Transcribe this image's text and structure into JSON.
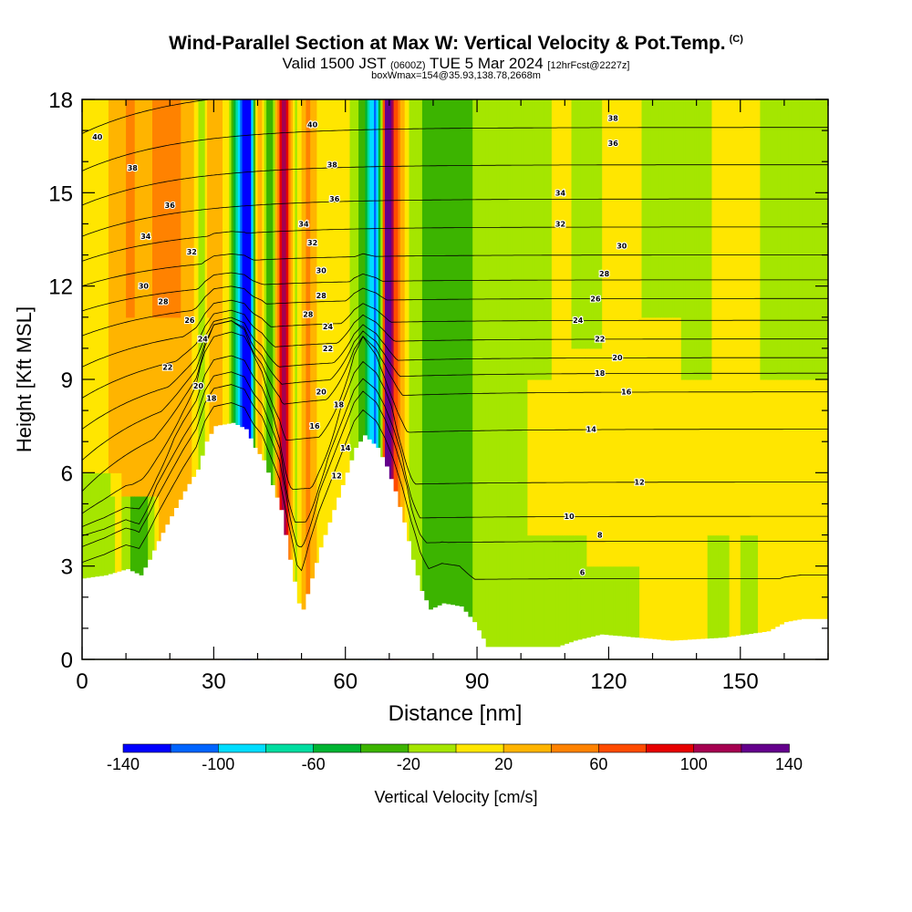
{
  "header": {
    "title_main": "Wind-Parallel Section at Max W: Vertical Velocity & Pot.Temp.",
    "title_tag": "(C)",
    "line2_a": "Valid 1500 JST",
    "line2_b": "(0600Z)",
    "line2_c": "TUE 5 Mar 2024",
    "line2_d": "[12hrFcst@2227z]",
    "line3": "boxWmax=154@35.93,138.78,2668m"
  },
  "colors": {
    "palette": [
      "#0000ff",
      "#0064ff",
      "#00ddff",
      "#00dda0",
      "#00b432",
      "#3cb400",
      "#a5e600",
      "#ffe600",
      "#ffb400",
      "#ff8200",
      "#ff4b00",
      "#e60000",
      "#a50050",
      "#64008c"
    ],
    "terrain": "#ffffff",
    "contour": "#000000"
  },
  "chart_data": {
    "type": "heatmap",
    "xlabel": "Distance [nm]",
    "ylabel": "Height [Kft MSL]",
    "xlim": [
      0,
      170
    ],
    "ylim": [
      0,
      18
    ],
    "xticks": [
      "0",
      "30",
      "60",
      "90",
      "120",
      "150"
    ],
    "yticks": [
      "0",
      "3",
      "6",
      "9",
      "12",
      "15",
      "18"
    ],
    "xtick_values": [
      0,
      30,
      60,
      90,
      120,
      150
    ],
    "ytick_values": [
      0,
      3,
      6,
      9,
      12,
      15,
      18
    ],
    "colorbar": {
      "label": "Vertical Velocity [cm/s]",
      "bounds": [
        -140,
        -120,
        -100,
        -80,
        -60,
        -40,
        -20,
        0,
        20,
        40,
        60,
        80,
        100,
        120,
        140
      ],
      "tick_labels": [
        "-140",
        "-100",
        "-60",
        "-20",
        "20",
        "60",
        "100",
        "140"
      ],
      "tick_values": [
        -140,
        -100,
        -60,
        -20,
        20,
        60,
        100,
        140
      ]
    },
    "background_w": 10,
    "terrain_profile": [
      [
        0,
        2.6
      ],
      [
        5,
        2.7
      ],
      [
        10,
        2.9
      ],
      [
        13,
        2.7
      ],
      [
        15,
        3.2
      ],
      [
        17,
        3.8
      ],
      [
        20,
        4.6
      ],
      [
        23,
        5.4
      ],
      [
        26,
        6.1
      ],
      [
        28,
        7.0
      ],
      [
        30,
        7.5
      ],
      [
        34,
        7.6
      ],
      [
        37,
        7.4
      ],
      [
        39,
        6.8
      ],
      [
        41,
        6.4
      ],
      [
        43,
        5.6
      ],
      [
        45,
        4.8
      ],
      [
        47,
        3.2
      ],
      [
        49,
        1.8
      ],
      [
        50,
        1.6
      ],
      [
        52,
        2.6
      ],
      [
        54,
        3.6
      ],
      [
        56,
        4.4
      ],
      [
        58,
        5.2
      ],
      [
        60,
        6.0
      ],
      [
        62,
        6.8
      ],
      [
        64,
        7.2
      ],
      [
        67,
        6.8
      ],
      [
        69,
        6.2
      ],
      [
        71,
        5.4
      ],
      [
        73,
        4.4
      ],
      [
        75,
        3.2
      ],
      [
        77,
        2.2
      ],
      [
        79,
        1.6
      ],
      [
        82,
        1.8
      ],
      [
        86,
        1.7
      ],
      [
        89,
        1.2
      ],
      [
        92,
        0.4
      ],
      [
        100,
        0.4
      ],
      [
        108,
        0.4
      ],
      [
        112,
        0.6
      ],
      [
        118,
        0.8
      ],
      [
        126,
        0.7
      ],
      [
        134,
        0.6
      ],
      [
        146,
        0.7
      ],
      [
        156,
        0.9
      ],
      [
        160,
        1.2
      ],
      [
        164,
        1.3
      ],
      [
        170,
        1.3
      ]
    ],
    "w_features": [
      {
        "x": 38.0,
        "w": -150,
        "sx": 1.2
      },
      {
        "x": 36.0,
        "w": -70,
        "sx": 1.4
      },
      {
        "x": 40.0,
        "w": 60,
        "sx": 1.0
      },
      {
        "x": 43.0,
        "w": -50,
        "sx": 1.4
      },
      {
        "x": 46.0,
        "w": 110,
        "sx": 1.3
      },
      {
        "x": 48.5,
        "w": -40,
        "sx": 1.5
      },
      {
        "x": 51.0,
        "w": 40,
        "sx": 1.6
      },
      {
        "x": 67.0,
        "w": -105,
        "sx": 1.5
      },
      {
        "x": 69.5,
        "w": 140,
        "sx": 1.0
      },
      {
        "x": 71.5,
        "w": 45,
        "sx": 1.4
      },
      {
        "x": 64.0,
        "w": -30,
        "sx": 2.0
      },
      {
        "x": 27.5,
        "w": -45,
        "sx": 1.2
      },
      {
        "x": 29.5,
        "w": 35,
        "sx": 1.5
      },
      {
        "x": 25.5,
        "w": 15,
        "sx": 2.0
      },
      {
        "x": 13.0,
        "w": -60,
        "sx": 2.6,
        "ytop": 5.2
      },
      {
        "x": 10.5,
        "w": 30,
        "sx": 3.0
      },
      {
        "x": 19.0,
        "w": 25,
        "sx": 2.2
      },
      {
        "x": 5.0,
        "w": -25,
        "sx": 5.0,
        "ytop": 6.0
      },
      {
        "x": 82.0,
        "w": -30,
        "sx": 4.0
      },
      {
        "x": 88.0,
        "w": -25,
        "sx": 3.5
      },
      {
        "x": 98.0,
        "w": -20,
        "sx": 3.0
      },
      {
        "x": 108.0,
        "w": -25,
        "sx": 5.0,
        "ytop": 4.0
      },
      {
        "x": 122.0,
        "w": -22,
        "sx": 4.0,
        "ytop": 3.0
      },
      {
        "x": 104.0,
        "w": -18,
        "sx": 2.5,
        "ybot": 9.0
      },
      {
        "x": 115.0,
        "w": -18,
        "sx": 3.0,
        "ybot": 10.0
      },
      {
        "x": 140.0,
        "w": -15,
        "sx": 4.0,
        "ybot": 9.0
      },
      {
        "x": 145.0,
        "w": -20,
        "sx": 2.0,
        "ytop": 4.0
      },
      {
        "x": 152.0,
        "w": -15,
        "sx": 2.0,
        "ytop": 4.0
      },
      {
        "x": 160.0,
        "w": -25,
        "sx": 4.0,
        "ybot": 9.0
      },
      {
        "x": 167.0,
        "w": -20,
        "sx": 2.5,
        "ybot": 9.0
      },
      {
        "x": 130.0,
        "w": -15,
        "sx": 3.0,
        "ybot": 11.0
      },
      {
        "x": 20.0,
        "w": 22,
        "sx": 4.0,
        "ybot": 11.0
      },
      {
        "x": 77.0,
        "w": -15,
        "sx": 3.0
      }
    ],
    "theta_levels": [
      6,
      8,
      10,
      12,
      14,
      16,
      18,
      20,
      22,
      24,
      26,
      28,
      30,
      32,
      34,
      36,
      38,
      40
    ],
    "theta_profile_far": [
      [
        6,
        2.6
      ],
      [
        8,
        3.8
      ],
      [
        10,
        4.6
      ],
      [
        12,
        5.7
      ],
      [
        14,
        7.4
      ],
      [
        16,
        8.6
      ],
      [
        18,
        9.2
      ],
      [
        20,
        9.7
      ],
      [
        22,
        10.3
      ],
      [
        24,
        10.9
      ],
      [
        26,
        11.6
      ],
      [
        28,
        12.2
      ],
      [
        30,
        13.0
      ],
      [
        32,
        13.9
      ],
      [
        34,
        14.8
      ],
      [
        36,
        15.9
      ],
      [
        38,
        17.1
      ],
      [
        40,
        18.4
      ]
    ],
    "theta_profile_west": [
      [
        6,
        1.0
      ],
      [
        8,
        2.0
      ],
      [
        10,
        2.8
      ],
      [
        12,
        3.6
      ],
      [
        14,
        4.4
      ],
      [
        16,
        5.4
      ],
      [
        18,
        6.4
      ],
      [
        20,
        7.4
      ],
      [
        22,
        8.4
      ],
      [
        24,
        9.4
      ],
      [
        26,
        10.4
      ],
      [
        28,
        11.2
      ],
      [
        30,
        12.0
      ],
      [
        32,
        12.8
      ],
      [
        34,
        13.6
      ],
      [
        36,
        14.6
      ],
      [
        38,
        15.7
      ],
      [
        40,
        16.9
      ]
    ],
    "contour_labels": [
      {
        "text": "40",
        "x": 3.5,
        "y": 16.8
      },
      {
        "text": "38",
        "x": 11.5,
        "y": 15.8
      },
      {
        "text": "36",
        "x": 20,
        "y": 14.6
      },
      {
        "text": "34",
        "x": 14.5,
        "y": 13.6
      },
      {
        "text": "32",
        "x": 25,
        "y": 13.1
      },
      {
        "text": "30",
        "x": 14,
        "y": 12.0
      },
      {
        "text": "28",
        "x": 18.5,
        "y": 11.5
      },
      {
        "text": "26",
        "x": 24.5,
        "y": 10.9
      },
      {
        "text": "24",
        "x": 27.5,
        "y": 10.3
      },
      {
        "text": "22",
        "x": 19.5,
        "y": 9.4
      },
      {
        "text": "20",
        "x": 26.5,
        "y": 8.8
      },
      {
        "text": "18",
        "x": 29.5,
        "y": 8.4
      },
      {
        "text": "40",
        "x": 52.5,
        "y": 17.2
      },
      {
        "text": "38",
        "x": 57,
        "y": 15.9
      },
      {
        "text": "36",
        "x": 57.5,
        "y": 14.8
      },
      {
        "text": "34",
        "x": 50.5,
        "y": 14.0
      },
      {
        "text": "32",
        "x": 52.5,
        "y": 13.4
      },
      {
        "text": "30",
        "x": 54.5,
        "y": 12.5
      },
      {
        "text": "28",
        "x": 54.5,
        "y": 11.7
      },
      {
        "text": "28",
        "x": 51.5,
        "y": 11.1
      },
      {
        "text": "24",
        "x": 56,
        "y": 10.7
      },
      {
        "text": "22",
        "x": 56,
        "y": 10.0
      },
      {
        "text": "20",
        "x": 54.5,
        "y": 8.6
      },
      {
        "text": "18",
        "x": 58.5,
        "y": 8.2
      },
      {
        "text": "16",
        "x": 53,
        "y": 7.5
      },
      {
        "text": "14",
        "x": 60,
        "y": 6.8
      },
      {
        "text": "12",
        "x": 58,
        "y": 5.9
      },
      {
        "text": "38",
        "x": 121,
        "y": 17.4
      },
      {
        "text": "36",
        "x": 121,
        "y": 16.6
      },
      {
        "text": "34",
        "x": 109,
        "y": 15.0
      },
      {
        "text": "32",
        "x": 109,
        "y": 14.0
      },
      {
        "text": "30",
        "x": 123,
        "y": 13.3
      },
      {
        "text": "28",
        "x": 119,
        "y": 12.4
      },
      {
        "text": "26",
        "x": 117,
        "y": 11.6
      },
      {
        "text": "24",
        "x": 113,
        "y": 10.9
      },
      {
        "text": "22",
        "x": 118,
        "y": 10.3
      },
      {
        "text": "20",
        "x": 122,
        "y": 9.7
      },
      {
        "text": "18",
        "x": 118,
        "y": 9.2
      },
      {
        "text": "16",
        "x": 124,
        "y": 8.6
      },
      {
        "text": "14",
        "x": 116,
        "y": 7.4
      },
      {
        "text": "12",
        "x": 127,
        "y": 5.7
      },
      {
        "text": "10",
        "x": 111,
        "y": 4.6
      },
      {
        "text": "8",
        "x": 118,
        "y": 4.0
      },
      {
        "text": "6",
        "x": 114,
        "y": 2.8
      }
    ]
  }
}
